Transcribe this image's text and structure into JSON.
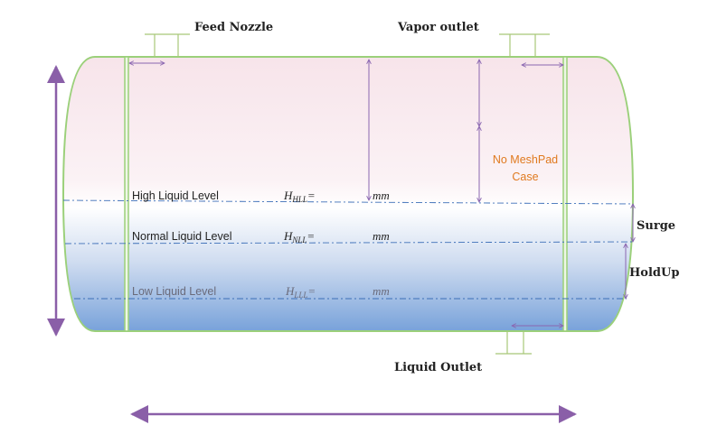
{
  "labels": {
    "feed_nozzle": "Feed Nozzle",
    "vapor_outlet": "Vapor outlet",
    "liquid_outlet": "Liquid Outlet",
    "meshpad_line1": "No MeshPad",
    "meshpad_line2": "Case",
    "surge": "Surge",
    "holdup": "HoldUp"
  },
  "levels": {
    "high": {
      "label": "High Liquid Level",
      "symbol": "H",
      "sub": "HLL",
      "eq": "=",
      "unit": "mm"
    },
    "normal": {
      "label": "Normal Liquid Level",
      "symbol": "H",
      "sub": "NLL",
      "eq": "=",
      "unit": "mm"
    },
    "low": {
      "label": "Low Liquid Level",
      "symbol": "H",
      "sub": "LLL",
      "eq": "=",
      "unit": "mm"
    }
  },
  "colors": {
    "vessel_outline": "#9bd07a",
    "arrow_purple": "#8a5fa8",
    "level_line": "#3c6fb8",
    "liquid_blue": "#7da6dc",
    "vapor_pink": "#f6e4ea",
    "dim_arrow": "#8a66b0",
    "nozzle_line": "#a8c878"
  }
}
